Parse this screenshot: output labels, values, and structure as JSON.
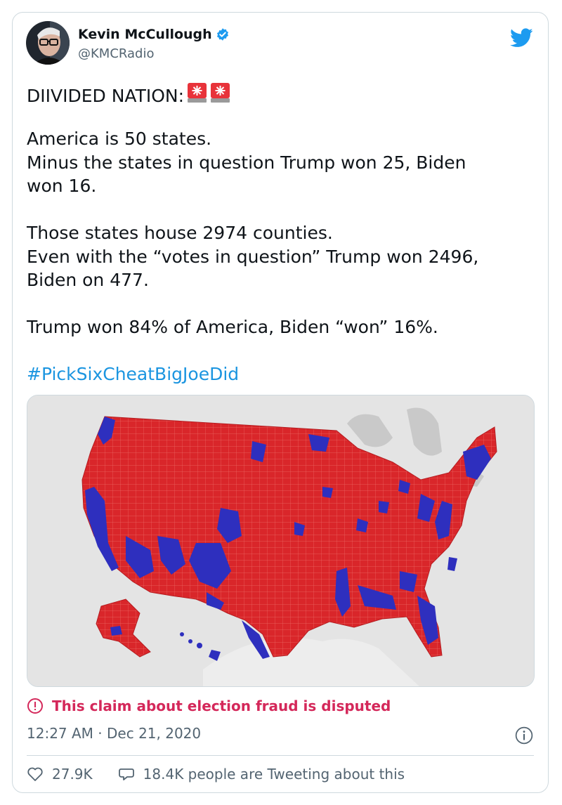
{
  "tweet": {
    "author": {
      "name": "Kevin McCullough",
      "handle": "@KMCRadio",
      "verified": true,
      "avatar_icon": "avatar-photo"
    },
    "brand_icon": "twitter-bird-icon",
    "text_lines": [
      "DIIVIDED NATION:",
      "",
      "America is 50 states.",
      "Minus the states in question Trump won 25, Biden",
      "won 16.",
      "",
      "Those states house 2974 counties.",
      "Even with the “votes in question” Trump won 2496,",
      "Biden on 477.",
      "",
      "Trump won 84% of America, Biden “won” 16%.",
      ""
    ],
    "hashtag": "#PickSixCheatBigJoeDid",
    "media_description_icon": "us-county-map-image",
    "disputed_label": "This claim about election fraud is disputed",
    "timestamp": "12:27 AM · Dec 21, 2020",
    "likes": "27.9K",
    "conversation": "18.4K people are Tweeting about this",
    "colors": {
      "accent": "#1d9bf0",
      "hashtag": "#1b95e0",
      "disputed": "#d4285a",
      "map_red": "#d9262a",
      "map_blue": "#2e2fbe",
      "muted": "#536471"
    }
  }
}
